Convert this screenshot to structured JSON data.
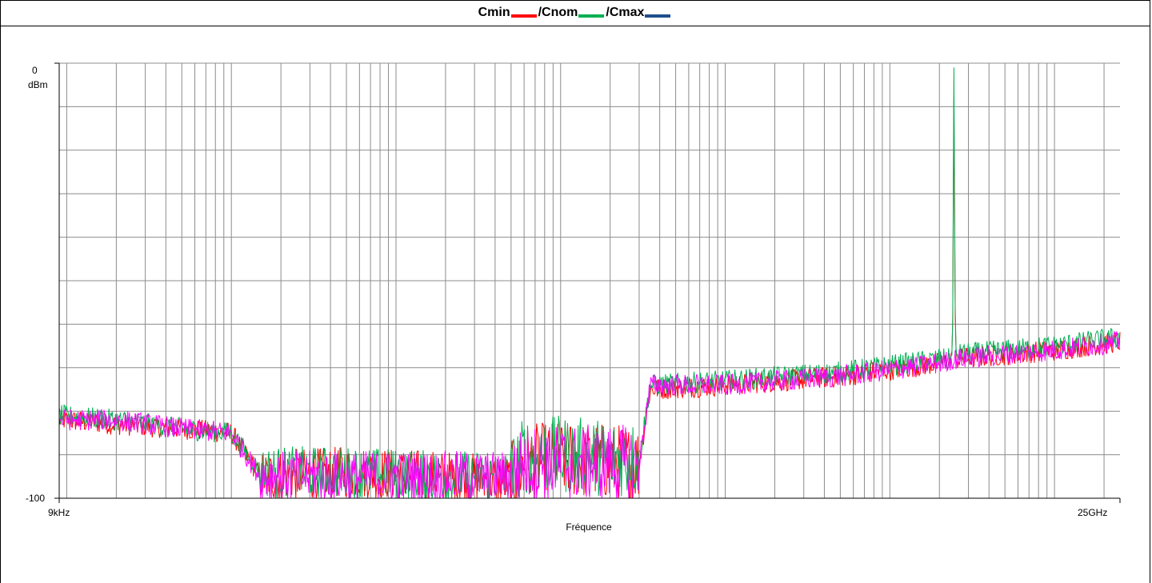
{
  "chart_data": {
    "type": "line",
    "title_parts": [
      {
        "text": "Cmin",
        "color": "#ff0000"
      },
      {
        "text": "/Cnom",
        "color": "#00b050"
      },
      {
        "text": "/Cmax",
        "color": "#1f4e8c"
      }
    ],
    "xlabel": "Fréquence",
    "ylabel": "dBm",
    "x_scale": "log",
    "xlim": [
      "9kHz",
      "25GHz"
    ],
    "ylim": [
      -100,
      0
    ],
    "y_tick_labels": [
      "0",
      "-100"
    ],
    "x_tick_labels": [
      "9kHz",
      "25GHz"
    ],
    "grid": true,
    "series": [
      {
        "color": "#ff0000",
        "points": [
          {
            "x": "9kHz",
            "y": -82
          },
          {
            "x": "20kHz",
            "y": -83
          },
          {
            "x": "50kHz",
            "y": -84
          },
          {
            "x": "100kHz",
            "y": -85
          },
          {
            "x": "150kHz",
            "y": -95
          },
          {
            "x": "500kHz",
            "y": -94
          },
          {
            "x": "2MHz",
            "y": -95
          },
          {
            "x": "5MHz",
            "y": -96
          },
          {
            "x": "6MHz",
            "y": -92
          },
          {
            "x": "10MHz",
            "y": -91
          },
          {
            "x": "30MHz",
            "y": -92
          },
          {
            "x": "35MHz",
            "y": -75
          },
          {
            "x": "100MHz",
            "y": -74
          },
          {
            "x": "500MHz",
            "y": -72
          },
          {
            "x": "2GHz",
            "y": -69
          },
          {
            "x": "2.4GHz",
            "y": -68
          },
          {
            "x": "2.45GHz",
            "y": -8
          },
          {
            "x": "2.5GHz",
            "y": -68
          },
          {
            "x": "10GHz",
            "y": -66
          },
          {
            "x": "25GHz",
            "y": -64
          }
        ]
      },
      {
        "color": "#00b050",
        "points": [
          {
            "x": "9kHz",
            "y": -81
          },
          {
            "x": "20kHz",
            "y": -82
          },
          {
            "x": "50kHz",
            "y": -84
          },
          {
            "x": "100kHz",
            "y": -85
          },
          {
            "x": "150kHz",
            "y": -94
          },
          {
            "x": "500kHz",
            "y": -94
          },
          {
            "x": "2MHz",
            "y": -95
          },
          {
            "x": "5MHz",
            "y": -95
          },
          {
            "x": "6MHz",
            "y": -90
          },
          {
            "x": "10MHz",
            "y": -90
          },
          {
            "x": "30MHz",
            "y": -91
          },
          {
            "x": "35MHz",
            "y": -74
          },
          {
            "x": "100MHz",
            "y": -73
          },
          {
            "x": "500MHz",
            "y": -71
          },
          {
            "x": "2GHz",
            "y": -68
          },
          {
            "x": "2.4GHz",
            "y": -68
          },
          {
            "x": "2.45GHz",
            "y": -1
          },
          {
            "x": "2.5GHz",
            "y": -67
          },
          {
            "x": "10GHz",
            "y": -65
          },
          {
            "x": "25GHz",
            "y": -63
          }
        ]
      },
      {
        "color": "#ff00ff",
        "points": [
          {
            "x": "9kHz",
            "y": -82
          },
          {
            "x": "20kHz",
            "y": -82
          },
          {
            "x": "50kHz",
            "y": -84
          },
          {
            "x": "100kHz",
            "y": -85
          },
          {
            "x": "150kHz",
            "y": -95
          },
          {
            "x": "500kHz",
            "y": -95
          },
          {
            "x": "2MHz",
            "y": -95
          },
          {
            "x": "5MHz",
            "y": -95
          },
          {
            "x": "6MHz",
            "y": -92
          },
          {
            "x": "10MHz",
            "y": -92
          },
          {
            "x": "30MHz",
            "y": -92
          },
          {
            "x": "35MHz",
            "y": -74
          },
          {
            "x": "100MHz",
            "y": -74
          },
          {
            "x": "500MHz",
            "y": -72
          },
          {
            "x": "2GHz",
            "y": -69
          },
          {
            "x": "2.4GHz",
            "y": -68
          },
          {
            "x": "2.45GHz",
            "y": -69
          },
          {
            "x": "2.5GHz",
            "y": -68
          },
          {
            "x": "10GHz",
            "y": -66
          },
          {
            "x": "25GHz",
            "y": -64
          }
        ]
      }
    ]
  }
}
